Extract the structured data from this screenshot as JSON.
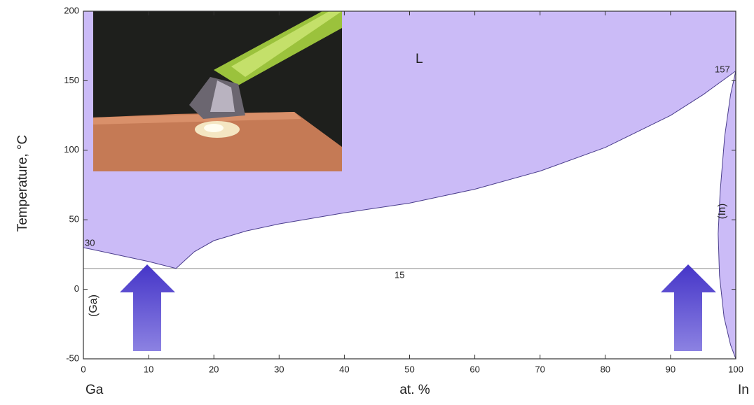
{
  "chart_data": {
    "type": "phase",
    "y_label": "Temperature, °C",
    "x_label": "at. %",
    "x_left_label": "Ga",
    "x_right_label": "In",
    "annotations": [
      "L",
      "(Ga)",
      "(In)"
    ],
    "eutectic_temperature": 15,
    "series": [
      {
        "x": [
          0,
          5,
          10,
          14.2,
          17,
          20,
          25,
          30,
          40,
          50,
          60,
          70,
          80,
          90,
          95,
          100
        ],
        "values": [
          30,
          25,
          20,
          15,
          27,
          35,
          42,
          47,
          55,
          62,
          72,
          85,
          102,
          125,
          140,
          157
        ],
        "color": "#cbbbf7"
      },
      {
        "x": [
          100,
          99.2,
          98.3,
          97.6,
          97.3,
          97.5,
          98.2,
          99.2,
          100
        ],
        "values": [
          157,
          140,
          110,
          70,
          40,
          10,
          -20,
          -40,
          -50
        ],
        "color": "#cbbbf7"
      }
    ],
    "xlim": [
      0,
      100
    ],
    "xticks": [
      0,
      10,
      20,
      30,
      40,
      50,
      60,
      70,
      80,
      90,
      100
    ],
    "ylim": [
      -50,
      200
    ],
    "yticks": [
      -50,
      0,
      50,
      100,
      150,
      200
    ]
  }
}
